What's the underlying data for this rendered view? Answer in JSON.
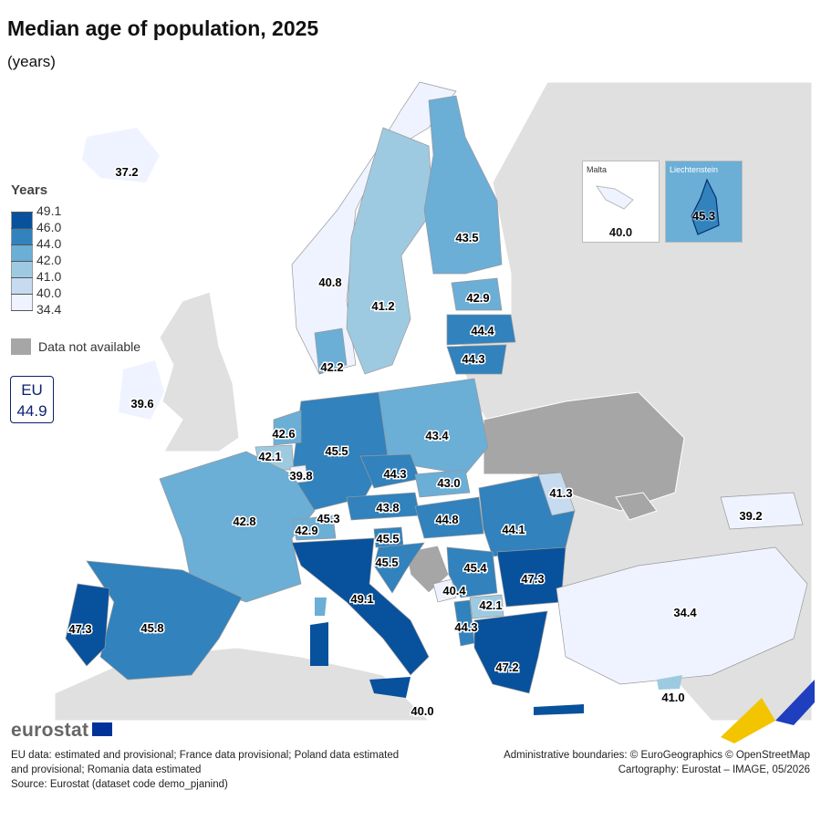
{
  "title": "Median age of population, 2025",
  "subtitle": "(years)",
  "legend": {
    "title": "Years",
    "breaks": [
      "49.1",
      "46.0",
      "44.0",
      "42.0",
      "41.0",
      "40.0",
      "34.4"
    ],
    "colors": [
      "#08519c",
      "#3182bd",
      "#6baed6",
      "#9ecae1",
      "#c6dbef",
      "#eff3ff"
    ],
    "not_available_label": "Data not available",
    "not_available_color": "#a6a6a6"
  },
  "eu": {
    "label": "EU",
    "value": "44.9"
  },
  "insets": {
    "malta": {
      "name": "Malta",
      "value": "40.0"
    },
    "liechtenstein": {
      "name": "Liechtenstein",
      "value": "45.3"
    }
  },
  "map_labels": [
    {
      "id": "iceland",
      "value": "37.2"
    },
    {
      "id": "ireland",
      "value": "39.6"
    },
    {
      "id": "norway",
      "value": "40.8"
    },
    {
      "id": "sweden",
      "value": "41.2"
    },
    {
      "id": "finland",
      "value": "43.5"
    },
    {
      "id": "estonia",
      "value": "42.9"
    },
    {
      "id": "latvia",
      "value": "44.4"
    },
    {
      "id": "lithuania",
      "value": "44.3"
    },
    {
      "id": "denmark",
      "value": "42.2"
    },
    {
      "id": "netherlands",
      "value": "42.6"
    },
    {
      "id": "belgium",
      "value": "42.1"
    },
    {
      "id": "luxembourg",
      "value": "39.8"
    },
    {
      "id": "germany",
      "value": "45.5"
    },
    {
      "id": "poland",
      "value": "43.4"
    },
    {
      "id": "czechia",
      "value": "44.3"
    },
    {
      "id": "slovakia",
      "value": "43.0"
    },
    {
      "id": "austria",
      "value": "43.8"
    },
    {
      "id": "switzerland",
      "value": "42.9"
    },
    {
      "id": "liechtenstein-map",
      "value": "45.3"
    },
    {
      "id": "slovenia",
      "value": "45.5"
    },
    {
      "id": "croatia",
      "value": "45.5"
    },
    {
      "id": "hungary",
      "value": "44.8"
    },
    {
      "id": "romania",
      "value": "44.1"
    },
    {
      "id": "moldova",
      "value": "41.3"
    },
    {
      "id": "serbia",
      "value": "45.4"
    },
    {
      "id": "bulgaria",
      "value": "47.3"
    },
    {
      "id": "montenegro",
      "value": "40.4"
    },
    {
      "id": "north-macedonia",
      "value": "42.1"
    },
    {
      "id": "albania",
      "value": "44.3"
    },
    {
      "id": "greece",
      "value": "47.2"
    },
    {
      "id": "france",
      "value": "42.8"
    },
    {
      "id": "spain",
      "value": "45.8"
    },
    {
      "id": "portugal",
      "value": "47.3"
    },
    {
      "id": "italy",
      "value": "49.1"
    },
    {
      "id": "malta-map",
      "value": "40.0"
    },
    {
      "id": "turkiye",
      "value": "34.4"
    },
    {
      "id": "georgia",
      "value": "39.2"
    },
    {
      "id": "cyprus",
      "value": "41.0"
    }
  ],
  "logo": "eurostat",
  "notes": {
    "line1": "EU data: estimated and provisional; France data provisional; Poland data estimated and provisional; Romania data estimated",
    "source": "Source: Eurostat (dataset code demo_pjanind)",
    "boundaries": "Administrative boundaries: © EuroGeographics © OpenStreetMap",
    "cartography": "Cartography: Eurostat – IMAGE, 05/2026"
  }
}
